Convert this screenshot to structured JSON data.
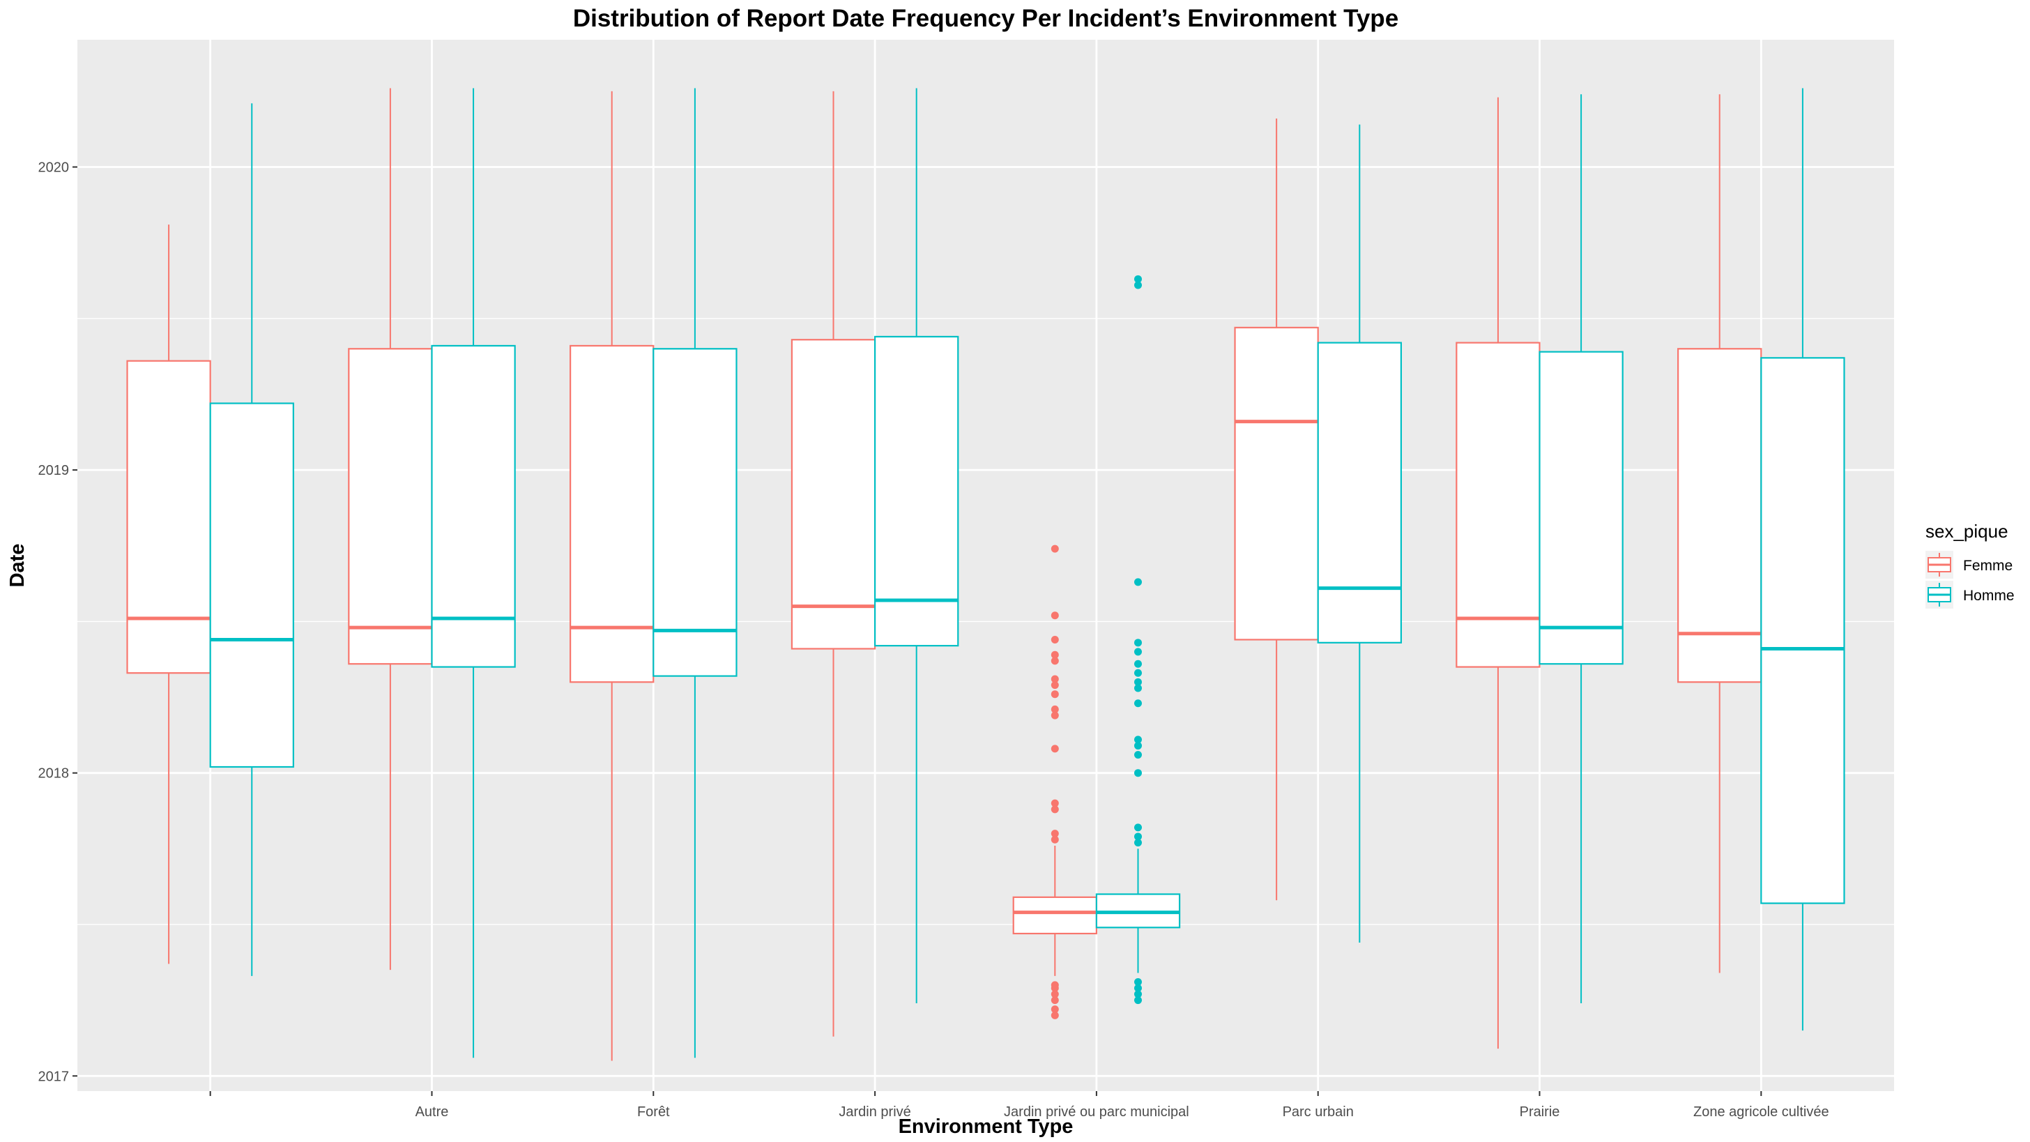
{
  "chart_data": {
    "type": "boxplot",
    "title": "Distribution of Report Date Frequency Per Incident’s Environment Type",
    "xlabel": "Environment Type",
    "ylabel": "Date",
    "ylim": [
      2016.95,
      2020.42
    ],
    "y_ticks": [
      "2017",
      "2018",
      "2019",
      "2020"
    ],
    "y_tick_values": [
      2017,
      2018,
      2019,
      2020
    ],
    "grid": true,
    "categories": [
      "",
      "Autre",
      "Forêt",
      "Jardin privé",
      "Jardin privé ou parc municipal",
      "Parc urbain",
      "Prairie",
      "Zone agricole cultivée"
    ],
    "legend": {
      "title": "sex_pique",
      "position": "right",
      "entries": [
        {
          "name": "Femme",
          "color": "#F8766D"
        },
        {
          "name": "Homme",
          "color": "#00BFC4"
        }
      ]
    },
    "series": [
      {
        "name": "Femme",
        "color": "#F8766D",
        "boxes": [
          {
            "lower_whisker": 2017.37,
            "q1": 2018.33,
            "median": 2018.51,
            "q3": 2019.36,
            "upper_whisker": 2019.81,
            "outliers": []
          },
          {
            "lower_whisker": 2017.35,
            "q1": 2018.36,
            "median": 2018.48,
            "q3": 2019.4,
            "upper_whisker": 2020.26,
            "outliers": []
          },
          {
            "lower_whisker": 2017.05,
            "q1": 2018.3,
            "median": 2018.48,
            "q3": 2019.41,
            "upper_whisker": 2020.25,
            "outliers": []
          },
          {
            "lower_whisker": 2017.13,
            "q1": 2018.41,
            "median": 2018.55,
            "q3": 2019.43,
            "upper_whisker": 2020.25,
            "outliers": []
          },
          {
            "lower_whisker": 2017.33,
            "q1": 2017.47,
            "median": 2017.54,
            "q3": 2017.59,
            "upper_whisker": 2017.76,
            "outliers": [
              2017.2,
              2017.22,
              2017.25,
              2017.27,
              2017.29,
              2017.3,
              2017.78,
              2017.8,
              2017.88,
              2017.9,
              2018.08,
              2018.19,
              2018.21,
              2018.26,
              2018.29,
              2018.31,
              2018.37,
              2018.39,
              2018.44,
              2018.52,
              2018.74
            ]
          },
          {
            "lower_whisker": 2017.58,
            "q1": 2018.44,
            "median": 2019.16,
            "q3": 2019.47,
            "upper_whisker": 2020.16,
            "outliers": []
          },
          {
            "lower_whisker": 2017.09,
            "q1": 2018.35,
            "median": 2018.51,
            "q3": 2019.42,
            "upper_whisker": 2020.23,
            "outliers": []
          },
          {
            "lower_whisker": 2017.34,
            "q1": 2018.3,
            "median": 2018.46,
            "q3": 2019.4,
            "upper_whisker": 2020.24,
            "outliers": []
          }
        ]
      },
      {
        "name": "Homme",
        "color": "#00BFC4",
        "boxes": [
          {
            "lower_whisker": 2017.33,
            "q1": 2018.02,
            "median": 2018.44,
            "q3": 2019.22,
            "upper_whisker": 2020.21,
            "outliers": []
          },
          {
            "lower_whisker": 2017.06,
            "q1": 2018.35,
            "median": 2018.51,
            "q3": 2019.41,
            "upper_whisker": 2020.26,
            "outliers": []
          },
          {
            "lower_whisker": 2017.06,
            "q1": 2018.32,
            "median": 2018.47,
            "q3": 2019.4,
            "upper_whisker": 2020.26,
            "outliers": []
          },
          {
            "lower_whisker": 2017.24,
            "q1": 2018.42,
            "median": 2018.57,
            "q3": 2019.44,
            "upper_whisker": 2020.26,
            "outliers": []
          },
          {
            "lower_whisker": 2017.34,
            "q1": 2017.49,
            "median": 2017.54,
            "q3": 2017.6,
            "upper_whisker": 2017.75,
            "outliers": [
              2017.25,
              2017.27,
              2017.29,
              2017.31,
              2017.77,
              2017.79,
              2017.82,
              2018.0,
              2018.06,
              2018.09,
              2018.11,
              2018.23,
              2018.28,
              2018.3,
              2018.33,
              2018.36,
              2018.4,
              2018.43,
              2018.63,
              2019.61,
              2019.63
            ]
          },
          {
            "lower_whisker": 2017.44,
            "q1": 2018.43,
            "median": 2018.61,
            "q3": 2019.42,
            "upper_whisker": 2020.14,
            "outliers": []
          },
          {
            "lower_whisker": 2017.24,
            "q1": 2018.36,
            "median": 2018.48,
            "q3": 2019.39,
            "upper_whisker": 2020.24,
            "outliers": []
          },
          {
            "lower_whisker": 2017.15,
            "q1": 2017.57,
            "median": 2018.41,
            "q3": 2019.37,
            "upper_whisker": 2020.26,
            "outliers": []
          }
        ]
      }
    ]
  }
}
